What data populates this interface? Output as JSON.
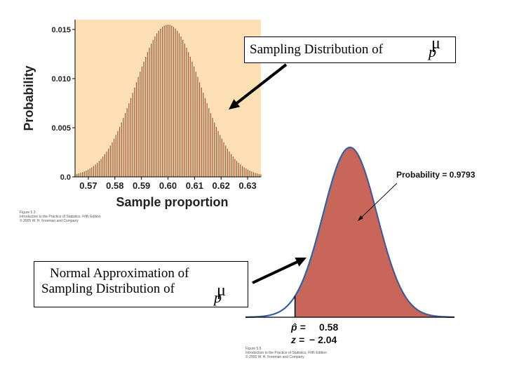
{
  "chart_data": [
    {
      "type": "bar",
      "ylabel": "Probability",
      "xlabel": "Sample proportion",
      "xlim": [
        0.565,
        0.635
      ],
      "ylim": [
        0,
        0.016
      ],
      "x_ticks": [
        "0.57",
        "0.58",
        "0.59",
        "0.60",
        "0.61",
        "0.62",
        "0.63"
      ],
      "y_ticks": [
        "0.0",
        "0.005",
        "0.010",
        "0.015"
      ],
      "mean": 0.6,
      "sd": 0.0122,
      "peak": 0.0155,
      "bar_step": 0.0007,
      "background_color": "#fce0b4",
      "bar_color": "#9a5a3a",
      "figure_credit": [
        "Figure 5.3",
        "Introduction to the Practice of Statistics, Fifth Edition",
        "© 2005 W. H. Freeman and Company"
      ]
    },
    {
      "type": "area",
      "mean": 0.6,
      "sd": 0.0098,
      "xlim": [
        0.562,
        0.638
      ],
      "shaded_from": 0.58,
      "phat_label": "p̂ =",
      "phat_value": "0.58",
      "z_label": "z =",
      "z_value": "− 2.04",
      "probability_annotation": "Probability = 0.9793",
      "fill_color": "#c8665a",
      "curve_color": "#3a5fa0",
      "figure_credit": [
        "Figure 5.5",
        "Introduction to the Practice of Statistics, Fifth Edition",
        "© 2005 W. H. Freeman and Company"
      ]
    }
  ],
  "callouts": {
    "top": "Sampling Distribution of",
    "bottom_line1": "Normal Approximation of",
    "bottom_line2": "Sampling Distribution of",
    "mu": "μ",
    "p": "p"
  }
}
